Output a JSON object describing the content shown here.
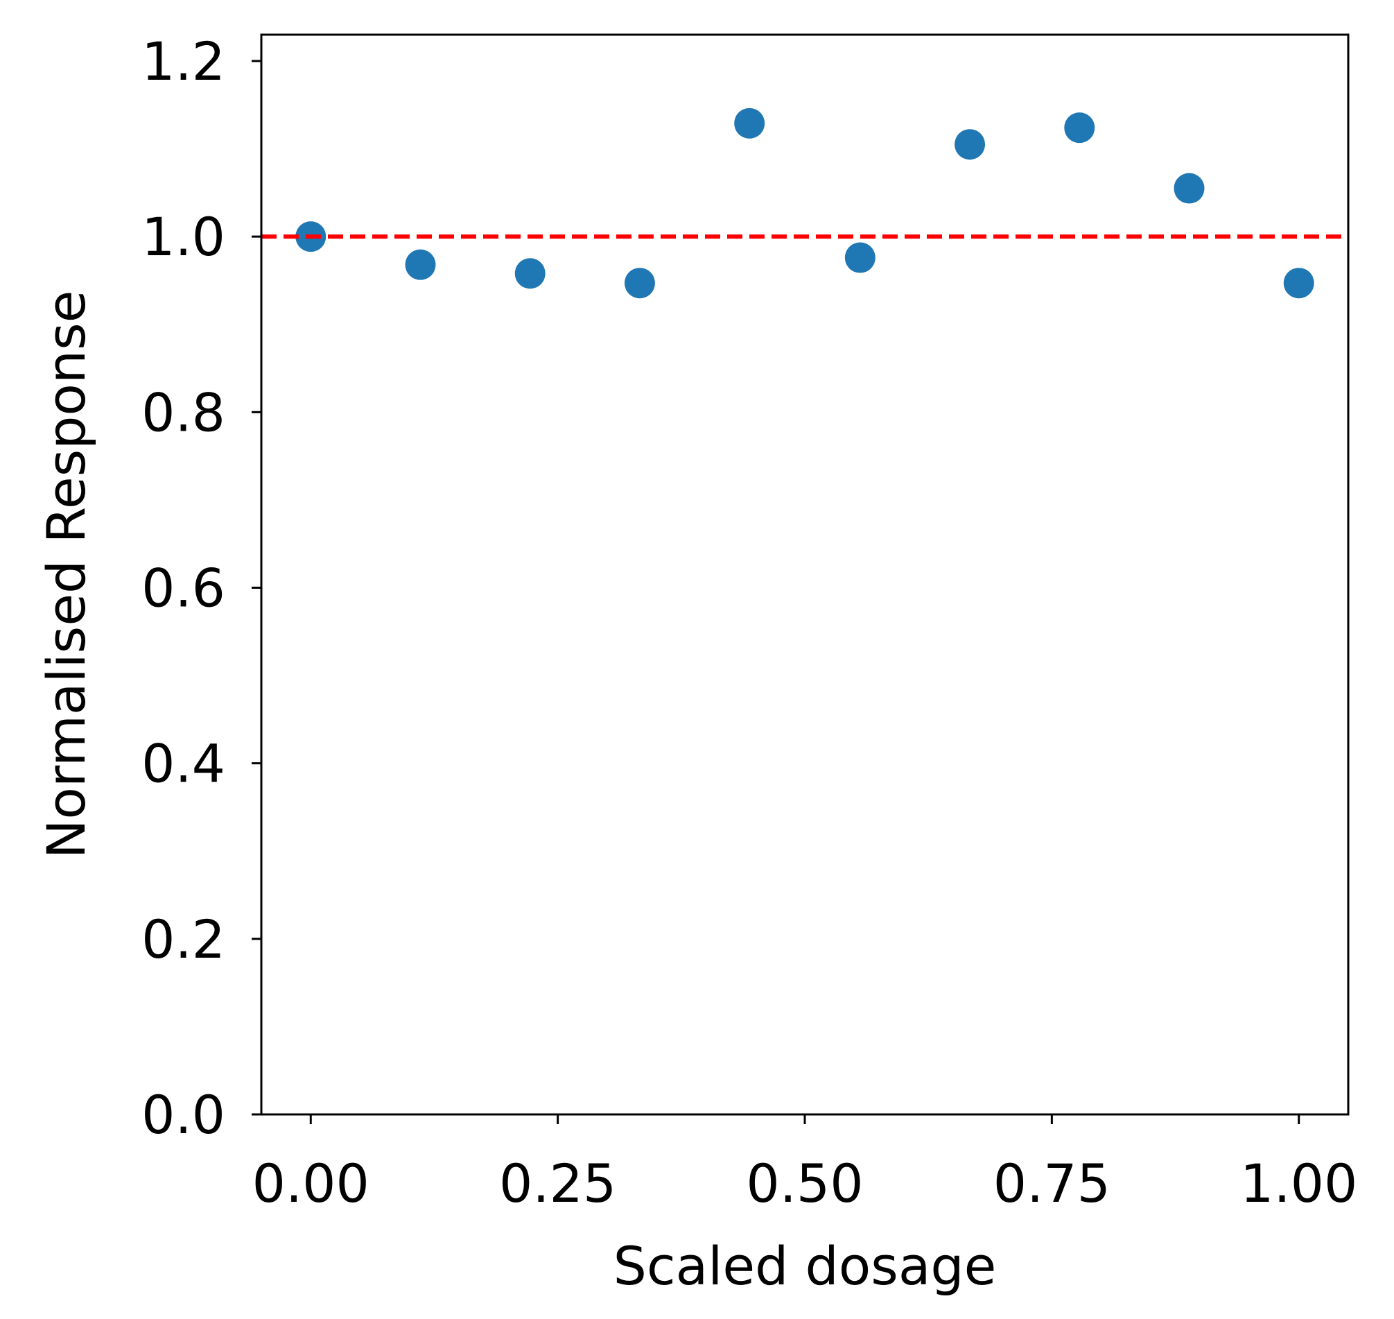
{
  "chart_data": {
    "type": "scatter",
    "title": "",
    "xlabel": "Scaled dosage",
    "ylabel": "Normalised Response",
    "xlim": [
      -0.05,
      1.05
    ],
    "ylim": [
      0.0,
      1.23
    ],
    "x_ticks": [
      0.0,
      0.25,
      0.5,
      0.75,
      1.0
    ],
    "x_tick_labels": [
      "0.00",
      "0.25",
      "0.50",
      "0.75",
      "1.00"
    ],
    "y_ticks": [
      0.0,
      0.2,
      0.4,
      0.6,
      0.8,
      1.0,
      1.2
    ],
    "y_tick_labels": [
      "0.0",
      "0.2",
      "0.4",
      "0.6",
      "0.8",
      "1.0",
      "1.2"
    ],
    "grid": false,
    "legend": "none",
    "series": [
      {
        "color": "#1f77b4",
        "points": [
          {
            "x": 0.0,
            "y": 1.0
          },
          {
            "x": 0.111,
            "y": 0.968
          },
          {
            "x": 0.222,
            "y": 0.958
          },
          {
            "x": 0.333,
            "y": 0.947
          },
          {
            "x": 0.444,
            "y": 1.129
          },
          {
            "x": 0.556,
            "y": 0.976
          },
          {
            "x": 0.667,
            "y": 1.105
          },
          {
            "x": 0.778,
            "y": 1.124
          },
          {
            "x": 0.889,
            "y": 1.055
          },
          {
            "x": 1.0,
            "y": 0.947
          }
        ]
      }
    ],
    "reference_line": {
      "orientation": "horizontal",
      "y": 1.0,
      "style": "dashed",
      "color": "#ff0000"
    }
  }
}
